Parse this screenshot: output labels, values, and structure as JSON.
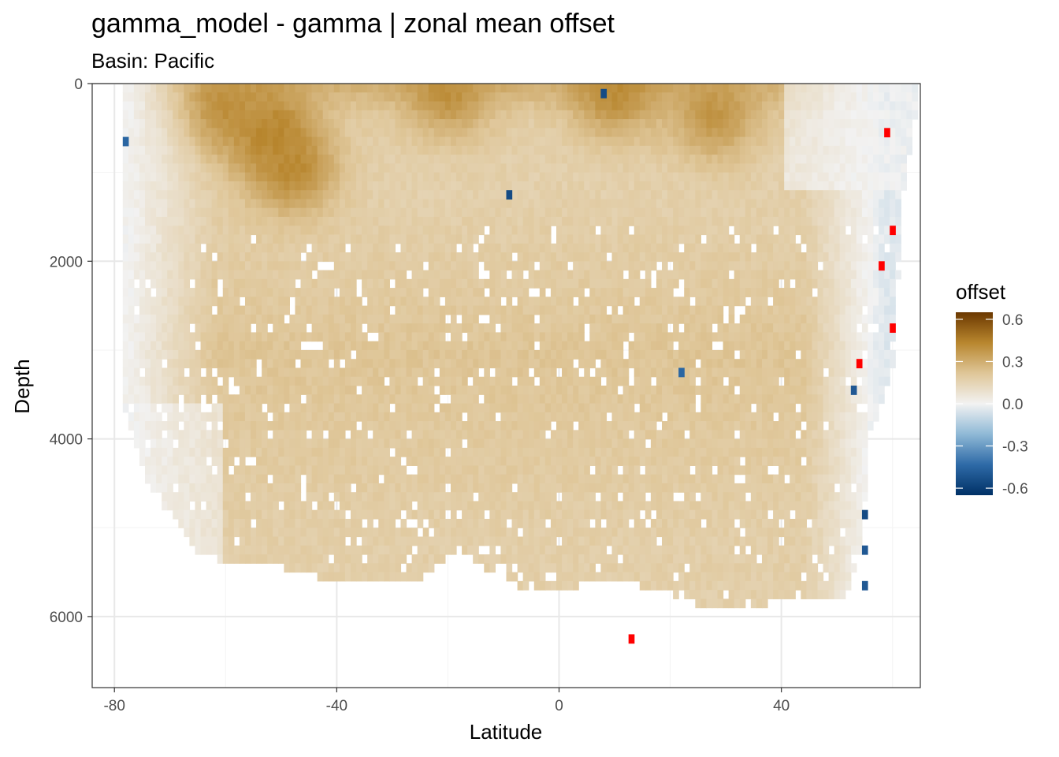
{
  "chart_data": {
    "type": "heatmap",
    "title": "gamma_model - gamma  | zonal mean offset",
    "subtitle": "Basin: Pacific",
    "xlabel": "Latitude",
    "ylabel": "Depth",
    "xlim": [
      -84,
      65
    ],
    "ylim": [
      6800,
      0
    ],
    "y_reversed": true,
    "x_ticks": [
      -80,
      -40,
      0,
      40
    ],
    "x_tick_labels": [
      "-80",
      "-40",
      "0",
      "40"
    ],
    "y_ticks": [
      0,
      2000,
      4000,
      6000
    ],
    "y_tick_labels": [
      "0",
      "2000",
      "4000",
      "6000"
    ],
    "grid": true,
    "cell": {
      "lat_width": 1,
      "depth_height": 100
    },
    "legend": {
      "title": "offset",
      "position": "right",
      "range": [
        -0.65,
        0.65
      ],
      "breaks": [
        0.6,
        0.3,
        0.0,
        -0.3,
        -0.6
      ],
      "break_labels": [
        "0.6",
        "0.3",
        "0.0",
        "-0.3",
        "-0.6"
      ]
    },
    "colors": {
      "scale": [
        "#003166",
        "#2e6aa7",
        "#8fb9d6",
        "#f2f2f2",
        "#dfc698",
        "#b8862e",
        "#6b3800"
      ],
      "out_of_range": "#ff0000",
      "grid_major": "#e8e8e8",
      "grid_minor": "#f3f3f3",
      "panel_border": "#333333"
    },
    "domain": {
      "lat_start": -78,
      "lat_end": 64,
      "note_bottom_profile": [
        [
          -78,
          3700
        ],
        [
          -76,
          4100
        ],
        [
          -74,
          4500
        ],
        [
          -70,
          4800
        ],
        [
          -66,
          5200
        ],
        [
          -62,
          5300
        ],
        [
          -56,
          5400
        ],
        [
          -50,
          5400
        ],
        [
          -44,
          5500
        ],
        [
          -38,
          5600
        ],
        [
          -30,
          5600
        ],
        [
          -24,
          5500
        ],
        [
          -18,
          5200
        ],
        [
          -14,
          5400
        ],
        [
          -8,
          5600
        ],
        [
          -2,
          5700
        ],
        [
          4,
          5600
        ],
        [
          10,
          5600
        ],
        [
          14,
          5600
        ],
        [
          20,
          5700
        ],
        [
          26,
          5900
        ],
        [
          32,
          5900
        ],
        [
          38,
          5800
        ],
        [
          44,
          5800
        ],
        [
          48,
          5800
        ],
        [
          52,
          5700
        ],
        [
          54,
          5300
        ],
        [
          56,
          4000
        ],
        [
          58,
          3600
        ],
        [
          60,
          3200
        ],
        [
          62,
          1200
        ],
        [
          64,
          400
        ]
      ]
    },
    "offset_field": {
      "base": [
        [
          0,
          0.28
        ],
        [
          200,
          0.22
        ],
        [
          400,
          0.18
        ],
        [
          800,
          0.17
        ],
        [
          1200,
          0.17
        ],
        [
          2000,
          0.19
        ],
        [
          3000,
          0.22
        ],
        [
          4000,
          0.2
        ],
        [
          5000,
          0.18
        ],
        [
          6000,
          0.17
        ]
      ],
      "surface_hotspots": [
        {
          "lat": -52,
          "depth": 500,
          "value": 0.45
        },
        {
          "lat": -48,
          "depth": 900,
          "value": 0.42
        },
        {
          "lat": -60,
          "depth": 200,
          "value": 0.4
        },
        {
          "lat": 28,
          "depth": 300,
          "value": 0.38
        },
        {
          "lat": -20,
          "depth": 20,
          "value": 0.4
        },
        {
          "lat": 10,
          "depth": 20,
          "value": 0.42
        }
      ],
      "negative_spots": [
        {
          "lat": 8,
          "depth": 60,
          "value": -0.55
        },
        {
          "lat": -78,
          "depth": 600,
          "value": -0.45
        },
        {
          "lat": -9,
          "depth": 1200,
          "value": -0.55
        },
        {
          "lat": 22,
          "depth": 3200,
          "value": -0.45
        },
        {
          "lat": 53,
          "depth": 3400,
          "value": -0.5
        },
        {
          "lat": 55,
          "depth": 4800,
          "value": -0.55
        },
        {
          "lat": 55,
          "depth": 5200,
          "value": -0.5
        },
        {
          "lat": 55,
          "depth": 5600,
          "value": -0.5
        }
      ],
      "extreme_spots": [
        {
          "lat": 59,
          "depth": 500,
          "value": 0.9
        },
        {
          "lat": 60,
          "depth": 1600,
          "value": 0.9
        },
        {
          "lat": 58,
          "depth": 2000,
          "value": 0.9
        },
        {
          "lat": 60,
          "depth": 2700,
          "value": 0.9
        },
        {
          "lat": 54,
          "depth": 3100,
          "value": 0.9
        },
        {
          "lat": 13,
          "depth": 6200,
          "value": 0.9
        }
      ]
    }
  }
}
